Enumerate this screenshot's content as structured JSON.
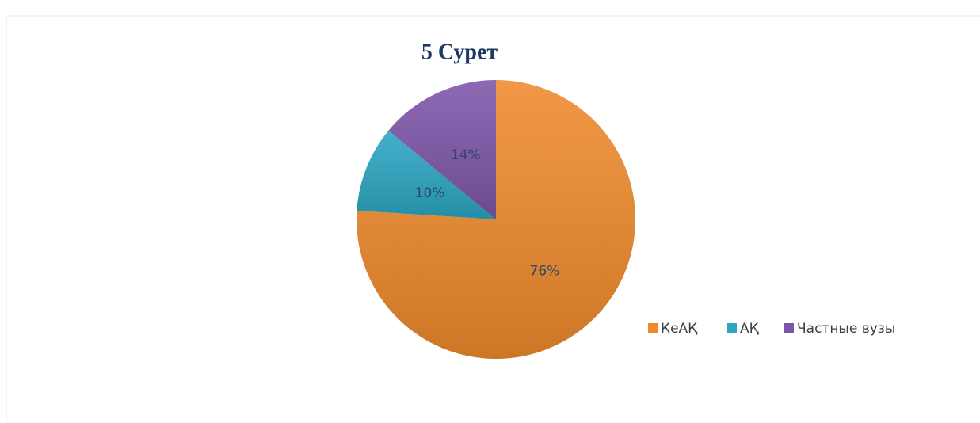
{
  "chart_data": {
    "type": "pie",
    "title": "5 Сурет",
    "categories": [
      "КеАҚ",
      "АҚ",
      "Частные вузы"
    ],
    "values": [
      76,
      10,
      14
    ],
    "value_labels": [
      "76%",
      "10%",
      "14%"
    ],
    "colors": [
      "#ee8a2c",
      "#2ba5c2",
      "#7d55a8"
    ],
    "legend": "bottom-right"
  }
}
